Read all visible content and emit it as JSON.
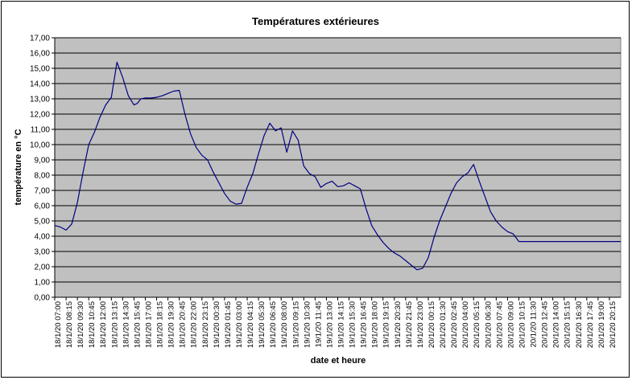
{
  "chart_data": {
    "type": "line",
    "title": "Températures extérieures",
    "xlabel": "date et heure",
    "ylabel": "température en °C",
    "ylim": [
      0,
      17
    ],
    "y_ticks": [
      "0,00",
      "1,00",
      "2,00",
      "3,00",
      "4,00",
      "5,00",
      "6,00",
      "7,00",
      "8,00",
      "9,00",
      "10,00",
      "11,00",
      "12,00",
      "13,00",
      "14,00",
      "15,00",
      "16,00",
      "17,00"
    ],
    "x_ticks": [
      "18/1/20 07:00",
      "18/1/20 08:15",
      "18/1/20 09:30",
      "18/1/20 10:45",
      "18/1/20 12:00",
      "18/1/20 13:15",
      "18/1/20 14:30",
      "18/1/20 15:45",
      "18/1/20 17:00",
      "18/1/20 18:15",
      "18/1/20 19:30",
      "18/1/20 20:45",
      "18/1/20 22:00",
      "18/1/20 23:15",
      "19/1/20 00:30",
      "19/1/20 01:45",
      "19/1/20 03:00",
      "19/1/20 04:15",
      "19/1/20 05:30",
      "19/1/20 06:45",
      "19/1/20 08:00",
      "19/1/20 09:15",
      "19/1/20 10:30",
      "19/1/20 11:45",
      "19/1/20 13:00",
      "19/1/20 14:15",
      "19/1/20 15:30",
      "19/1/20 16:45",
      "19/1/20 18:00",
      "19/1/20 19:15",
      "19/1/20 20:30",
      "19/1/20 21:45",
      "19/1/20 23:00",
      "20/1/20 00:15",
      "20/1/20 01:30",
      "20/1/20 02:45",
      "20/1/20 04:00",
      "20/1/20 05:15",
      "20/1/20 06:30",
      "20/1/20 07:45",
      "20/1/20 09:00",
      "20/1/20 10:15",
      "20/1/20 11:30",
      "20/1/20 12:45",
      "20/1/20 14:00",
      "20/1/20 15:15",
      "20/1/20 16:30",
      "20/1/20 17:45",
      "20/1/20 19:00",
      "20/1/20 20:15"
    ],
    "grid": true,
    "plot_background": "#c0c0c0",
    "line_color": "#000080",
    "series": [
      {
        "x": [
          0,
          0.5,
          1,
          1.5,
          2,
          2.5,
          3,
          3.5,
          4,
          4.5,
          5,
          5.5,
          6,
          6.5,
          7,
          7.3,
          7.6,
          8,
          8.5,
          9,
          9.5,
          10,
          10.5,
          11,
          11.5,
          12,
          12.5,
          13,
          13.5,
          14,
          14.5,
          15,
          15.5,
          16,
          16.5,
          17,
          17.5,
          18,
          18.5,
          19,
          19.5,
          20,
          20.5,
          21,
          21.5,
          22,
          22.5,
          23,
          23.5,
          24,
          24.5,
          25,
          25.5,
          26,
          26.5,
          27,
          27.5,
          28,
          28.5,
          29,
          29.5,
          30,
          30.5,
          31,
          31.5,
          32,
          32.5,
          33,
          33.5,
          34,
          34.5,
          35,
          35.5,
          36,
          36.5,
          37,
          37.5,
          38,
          38.5,
          39,
          39.5,
          40,
          40.5,
          41,
          41.5,
          42,
          42.5,
          43,
          43.5,
          44,
          44.5,
          45,
          45.5,
          46,
          46.5,
          47,
          47.5,
          48,
          48.5,
          49,
          49.5,
          50
        ],
        "y": [
          4.7,
          4.6,
          4.4,
          4.8,
          6.2,
          8.2,
          10,
          10.8,
          11.8,
          12.6,
          13.1,
          15.4,
          14.4,
          13.2,
          12.6,
          12.7,
          13,
          13.05,
          13.05,
          13.1,
          13.2,
          13.35,
          13.5,
          13.55,
          12,
          10.7,
          9.8,
          9.3,
          9,
          8.2,
          7.5,
          6.8,
          6.3,
          6.1,
          6.15,
          7.2,
          8.1,
          9.4,
          10.6,
          11.4,
          10.9,
          11.1,
          9.5,
          10.9,
          10.3,
          8.6,
          8.1,
          7.9,
          7.2,
          7.45,
          7.6,
          7.25,
          7.3,
          7.5,
          7.3,
          7.1,
          5.8,
          4.7,
          4.1,
          3.6,
          3.2,
          2.9,
          2.7,
          2.4,
          2.1,
          1.8,
          1.9,
          2.6,
          3.9,
          5.0,
          5.9,
          6.8,
          7.5,
          7.9,
          8.15,
          8.7,
          7.6,
          6.6,
          5.6,
          5.0,
          4.6,
          4.3,
          4.15,
          3.65,
          3.65,
          3.65,
          3.65,
          3.65,
          3.65,
          3.65,
          3.65,
          3.65,
          3.65,
          3.65,
          3.65,
          3.65,
          3.65,
          3.65,
          3.65,
          3.65,
          3.65,
          3.65
        ]
      }
    ]
  }
}
